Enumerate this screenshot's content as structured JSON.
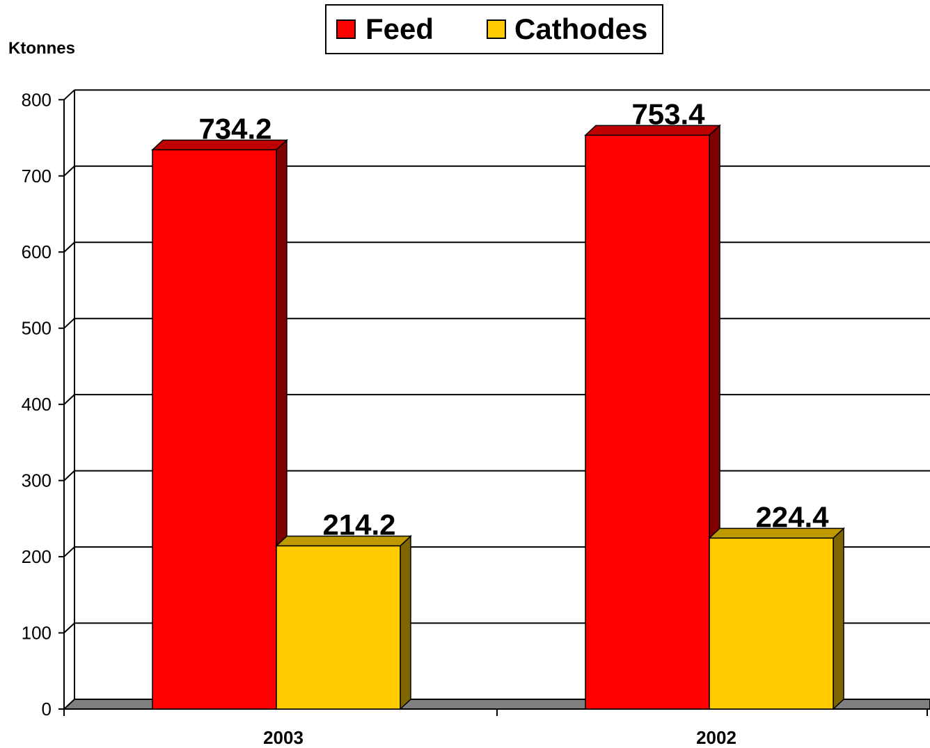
{
  "chart_data": {
    "type": "bar",
    "ylabel": "Ktonnes",
    "categories": [
      "2003",
      "2002"
    ],
    "series": [
      {
        "name": "Feed",
        "values": [
          734.2,
          753.4
        ],
        "labels": [
          "734.2",
          "753.4"
        ],
        "color": "#FF0000",
        "side_color": "#7F0000",
        "top_color": "#BF0000"
      },
      {
        "name": "Cathodes",
        "values": [
          214.2,
          224.4
        ],
        "labels": [
          "214.2",
          "224.4"
        ],
        "color": "#FFCC00",
        "side_color": "#7F6600",
        "top_color": "#BF9900"
      }
    ],
    "ylim": [
      0,
      800
    ],
    "yticks": [
      "0",
      "100",
      "200",
      "300",
      "400",
      "500",
      "600",
      "700",
      "800"
    ],
    "grid": true,
    "legend_position": "top-center",
    "style": "3d-clustered-column",
    "floor_color": "#808080"
  }
}
